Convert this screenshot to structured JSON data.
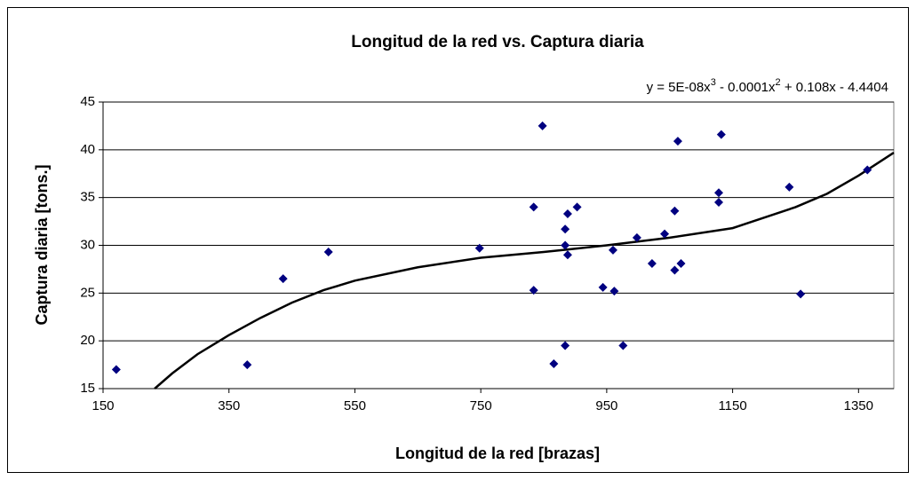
{
  "chart_data": {
    "type": "scatter",
    "title": "Longitud de la red vs. Captura diaria",
    "x_label": "Longitud de la red [brazas]",
    "y_label": "Captura diaria [tons.]",
    "trendline_label": [
      "y = 5E-08x",
      "3",
      " - 0.0001x",
      "2",
      " + 0.108x - 4.4404"
    ],
    "series": [
      {
        "color": "#000080",
        "x": [
          171,
          379,
          436,
          508,
          748,
          834,
          834,
          848,
          866,
          884,
          884,
          884,
          888,
          888,
          903,
          944,
          960,
          962,
          976,
          998,
          1022,
          1042,
          1058,
          1058,
          1063,
          1068,
          1128,
          1128,
          1132,
          1240,
          1258,
          1364
        ],
        "values": [
          17,
          17.5,
          26.5,
          29.3,
          29.7,
          34,
          25.3,
          42.5,
          17.6,
          31.7,
          30,
          19.5,
          29,
          33.3,
          34,
          25.6,
          29.5,
          25.2,
          19.5,
          30.8,
          28.1,
          31.2,
          33.6,
          27.4,
          40.9,
          28.1,
          35.5,
          34.5,
          41.6,
          36.1,
          24.9,
          37.9
        ]
      }
    ],
    "trendline": {
      "color": "#000000",
      "x": [
        232,
        260,
        300,
        350,
        400,
        450,
        500,
        550,
        650,
        750,
        850,
        950,
        1050,
        1150,
        1250,
        1300,
        1350,
        1406
      ],
      "values": [
        15,
        16.6,
        18.6,
        20.6,
        22.4,
        24,
        25.3,
        26.3,
        27.7,
        28.7,
        29.3,
        30,
        30.8,
        31.8,
        34,
        35.4,
        37.3,
        39.7
      ]
    },
    "xlim": [
      150,
      1406
    ],
    "xticks": [
      150,
      350,
      550,
      750,
      950,
      1150,
      1350
    ],
    "ylim": [
      15,
      45
    ],
    "yticks": [
      15,
      20,
      25,
      30,
      35,
      40,
      45
    ],
    "grid": true
  }
}
